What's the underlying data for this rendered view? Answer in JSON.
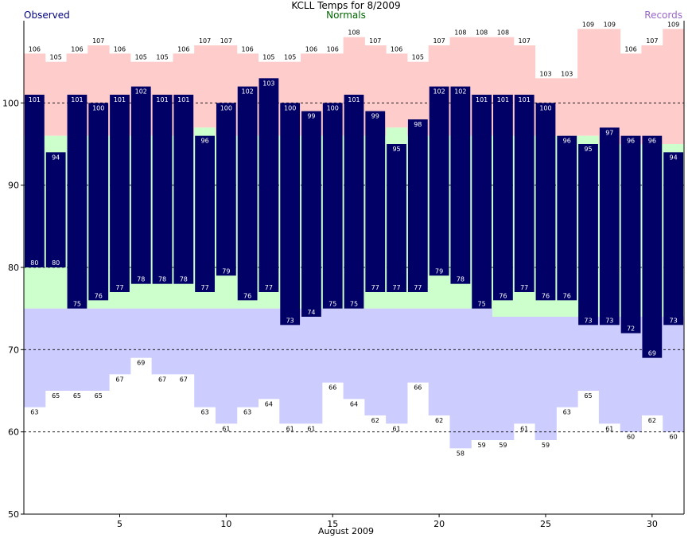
{
  "chart_data": {
    "type": "bar",
    "title": "KCLL Temps for 8/2009",
    "xlabel": "August 2009",
    "ylabel": "",
    "legend": [
      "Observed",
      "Normals",
      "Records"
    ],
    "ylim": [
      50,
      110
    ],
    "xlim": [
      0.5,
      31.5
    ],
    "yticks": [
      50,
      60,
      70,
      80,
      90,
      100
    ],
    "xticks": [
      5,
      10,
      15,
      20,
      25,
      30
    ],
    "gridlines_dashed": [
      60,
      70,
      80,
      90,
      100
    ],
    "days": [
      1,
      2,
      3,
      4,
      5,
      6,
      7,
      8,
      9,
      10,
      11,
      12,
      13,
      14,
      15,
      16,
      17,
      18,
      19,
      20,
      21,
      22,
      23,
      24,
      25,
      26,
      27,
      28,
      29,
      30,
      31
    ],
    "series": [
      {
        "name": "Observed",
        "role": "high",
        "values": [
          101,
          94,
          101,
          100,
          101,
          102,
          101,
          101,
          96,
          100,
          102,
          103,
          100,
          99,
          100,
          101,
          99,
          95,
          98,
          102,
          102,
          101,
          101,
          101,
          100,
          96,
          95,
          97,
          96,
          96,
          94
        ]
      },
      {
        "name": "Observed",
        "role": "low",
        "values": [
          80,
          80,
          75,
          76,
          77,
          78,
          78,
          78,
          77,
          79,
          76,
          77,
          73,
          74,
          75,
          75,
          77,
          77,
          77,
          79,
          78,
          75,
          76,
          77,
          76,
          76,
          73,
          73,
          72,
          69,
          73
        ]
      },
      {
        "name": "Normals",
        "role": "high",
        "values": [
          96,
          96,
          96,
          96,
          96,
          96,
          96,
          96,
          97,
          96,
          96,
          96,
          96,
          96,
          96,
          96,
          96,
          97,
          96,
          96,
          96,
          96,
          96,
          96,
          96,
          96,
          96,
          95,
          95,
          95,
          95
        ]
      },
      {
        "name": "Normals",
        "role": "low",
        "values": [
          75,
          75,
          75,
          75,
          75,
          75,
          75,
          75,
          75,
          75,
          75,
          75,
          75,
          75,
          75,
          75,
          75,
          75,
          75,
          75,
          75,
          75,
          74,
          74,
          74,
          74,
          74,
          74,
          74,
          74,
          74
        ]
      },
      {
        "name": "Records",
        "role": "high",
        "values": [
          106,
          105,
          106,
          107,
          106,
          105,
          105,
          106,
          107,
          107,
          106,
          105,
          105,
          106,
          106,
          108,
          107,
          106,
          105,
          107,
          108,
          108,
          108,
          107,
          103,
          103,
          109,
          109,
          106,
          107,
          109
        ]
      },
      {
        "name": "Records",
        "role": "low",
        "values": [
          63,
          65,
          65,
          65,
          67,
          69,
          67,
          67,
          63,
          61,
          63,
          64,
          61,
          61,
          66,
          64,
          62,
          61,
          66,
          62,
          58,
          59,
          59,
          61,
          59,
          63,
          65,
          61,
          60,
          62,
          60
        ]
      }
    ],
    "colors": {
      "observed": "#000066",
      "normals_band": "#ccffcc",
      "record_high_band": "#ffcccc",
      "record_low_band": "#ccccff",
      "obs_legend": "#000080",
      "normals_legend": "#006600",
      "records_legend": "#9966cc"
    }
  }
}
